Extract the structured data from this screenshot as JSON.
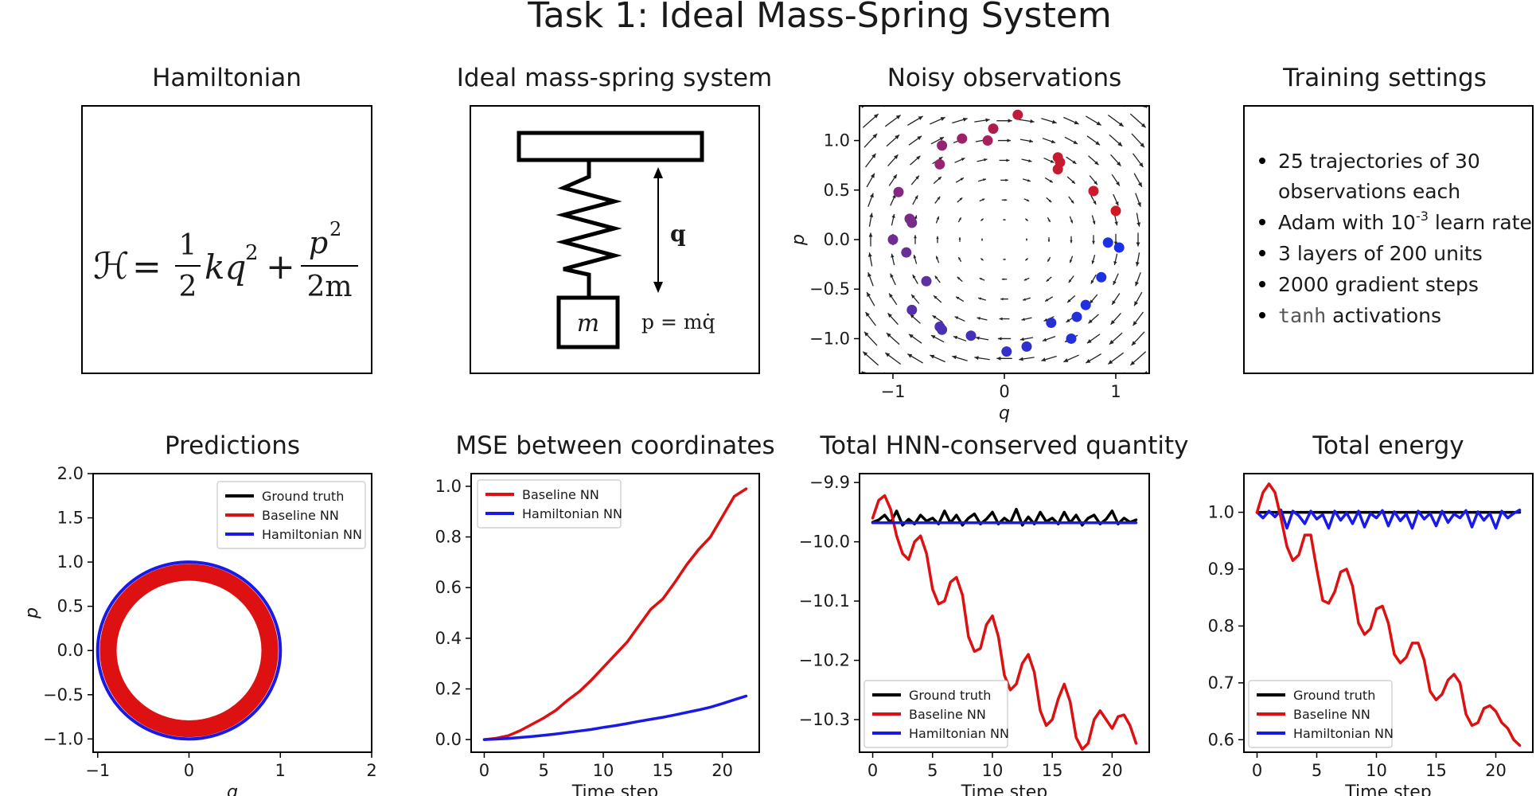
{
  "figure_title": "Task 1: Ideal Mass-Spring System",
  "panels": {
    "hamiltonian": {
      "title": "Hamiltonian",
      "equation": {
        "lhs": "ℋ",
        "eq": "=",
        "n1": "1",
        "d1": "2",
        "term1": "kq",
        "sup1": "2",
        "plus": "+",
        "n2": "p",
        "sup2": "2",
        "d2": "2m"
      }
    },
    "system": {
      "title": "Ideal mass-spring system",
      "mass": "m",
      "q": "q",
      "p_eq": "p = mq̇"
    },
    "training": {
      "title": "Training settings",
      "bullets": [
        {
          "text": "25 trajectories of 30"
        },
        {
          "text": "observations each"
        },
        {
          "text": "Adam with 10",
          "sup": "-3",
          "rest": " learn rate"
        },
        {
          "text": "3 layers of 200 units"
        },
        {
          "text": "2000 gradient steps"
        },
        {
          "mono": "tanh",
          "rest": " activations"
        }
      ]
    }
  },
  "colors": {
    "ground_truth": "#000000",
    "baseline": "#dd1111",
    "hnn": "#1a1ae6"
  },
  "chart_data": [
    {
      "id": "noisy",
      "type": "scatter",
      "title": "Noisy observations",
      "xlabel": "q",
      "ylabel": "p",
      "xlim": [
        -1.3,
        1.3
      ],
      "ylim": [
        -1.35,
        1.35
      ],
      "xticks": [
        -1,
        0,
        1
      ],
      "xtick_labels": [
        "−1",
        "0",
        "1"
      ],
      "yticks": [
        -1.0,
        -0.5,
        0.0,
        0.5,
        1.0
      ],
      "ytick_labels": [
        "−1.0",
        "−0.5",
        "0.0",
        "0.5",
        "1.0"
      ],
      "points": [
        {
          "x": 0.12,
          "y": 1.26,
          "color": "#c01a3c"
        },
        {
          "x": -0.1,
          "y": 1.12,
          "color": "#b01c4a"
        },
        {
          "x": -0.15,
          "y": 1.0,
          "color": "#a8215a"
        },
        {
          "x": -0.38,
          "y": 1.02,
          "color": "#9b2268"
        },
        {
          "x": -0.56,
          "y": 0.95,
          "color": "#952470"
        },
        {
          "x": -0.58,
          "y": 0.76,
          "color": "#932574"
        },
        {
          "x": -0.95,
          "y": 0.48,
          "color": "#842880"
        },
        {
          "x": -0.85,
          "y": 0.21,
          "color": "#7c2a86"
        },
        {
          "x": -0.83,
          "y": 0.17,
          "color": "#782c8a"
        },
        {
          "x": -1.0,
          "y": 0.0,
          "color": "#6d2d92"
        },
        {
          "x": -0.88,
          "y": -0.13,
          "color": "#682e96"
        },
        {
          "x": -0.7,
          "y": -0.42,
          "color": "#5e30a0"
        },
        {
          "x": -0.83,
          "y": -0.71,
          "color": "#5630a8"
        },
        {
          "x": -0.58,
          "y": -0.88,
          "color": "#4e30b0"
        },
        {
          "x": -0.56,
          "y": -0.91,
          "color": "#4a30b4"
        },
        {
          "x": -0.3,
          "y": -0.97,
          "color": "#4230bc"
        },
        {
          "x": 0.02,
          "y": -1.13,
          "color": "#3430c8"
        },
        {
          "x": 0.2,
          "y": -1.08,
          "color": "#2e30ce"
        },
        {
          "x": 0.42,
          "y": -0.84,
          "color": "#2830d4"
        },
        {
          "x": 0.6,
          "y": -1.0,
          "color": "#2430d8"
        },
        {
          "x": 0.65,
          "y": -0.78,
          "color": "#2230dc"
        },
        {
          "x": 0.73,
          "y": -0.66,
          "color": "#2030de"
        },
        {
          "x": 0.87,
          "y": -0.38,
          "color": "#1e30e0"
        },
        {
          "x": 0.93,
          "y": -0.03,
          "color": "#1c30e4"
        },
        {
          "x": 1.03,
          "y": -0.08,
          "color": "#1a30e8"
        },
        {
          "x": 1.0,
          "y": 0.29,
          "color": "#d01a22"
        },
        {
          "x": 0.8,
          "y": 0.49,
          "color": "#cc1a2a"
        },
        {
          "x": 0.48,
          "y": 0.71,
          "color": "#c41a32"
        },
        {
          "x": 0.5,
          "y": 0.78,
          "color": "#c61a30"
        },
        {
          "x": 0.48,
          "y": 0.83,
          "color": "#c81a2e"
        }
      ]
    },
    {
      "id": "pred",
      "type": "line",
      "title": "Predictions",
      "xlabel": "q",
      "ylabel": "p",
      "xlim": [
        -1.05,
        2.0
      ],
      "ylim": [
        -1.15,
        2.0
      ],
      "xticks": [
        -1,
        0,
        1,
        2
      ],
      "xtick_labels": [
        "−1",
        "0",
        "1",
        "2"
      ],
      "yticks": [
        -1.0,
        -0.5,
        0.0,
        0.5,
        1.0,
        1.5,
        2.0
      ],
      "ytick_labels": [
        "−1.0",
        "−0.5",
        "0.0",
        "0.5",
        "1.0",
        "1.5",
        "2.0"
      ],
      "legend": [
        "Ground truth",
        "Baseline NN",
        "Hamiltonian NN"
      ],
      "legend_loc": "upper right",
      "rings": {
        "ground_truth_radius": 1.0,
        "hnn_radius": 0.995,
        "baseline_outer_radius": 0.98,
        "baseline_inner_radius": 0.79
      }
    },
    {
      "id": "mse",
      "type": "line",
      "title": "MSE between coordinates",
      "xlabel": "Time step",
      "ylabel": "",
      "xlim": [
        -1.1,
        23.1
      ],
      "ylim": [
        -0.05,
        1.05
      ],
      "xticks": [
        0,
        5,
        10,
        15,
        20
      ],
      "xtick_labels": [
        "0",
        "5",
        "10",
        "15",
        "20"
      ],
      "yticks": [
        0.0,
        0.2,
        0.4,
        0.6,
        0.8,
        1.0
      ],
      "ytick_labels": [
        "0.0",
        "0.2",
        "0.4",
        "0.6",
        "0.8",
        "1.0"
      ],
      "legend": [
        "Baseline NN",
        "Hamiltonian NN"
      ],
      "legend_loc": "upper left",
      "series": [
        {
          "name": "Baseline NN",
          "color": "#dd1111",
          "x": [
            0,
            1,
            2,
            3,
            4,
            5,
            6,
            7,
            8,
            9,
            10,
            11,
            12,
            13,
            14,
            15,
            16,
            17,
            18,
            19,
            20,
            21,
            22
          ],
          "y": [
            0.0,
            0.005,
            0.015,
            0.035,
            0.06,
            0.085,
            0.115,
            0.155,
            0.19,
            0.235,
            0.285,
            0.335,
            0.385,
            0.45,
            0.515,
            0.555,
            0.62,
            0.69,
            0.75,
            0.8,
            0.88,
            0.96,
            0.99
          ]
        },
        {
          "name": "Hamiltonian NN",
          "color": "#1a1ae6",
          "x": [
            0,
            1,
            2,
            3,
            4,
            5,
            6,
            7,
            8,
            9,
            10,
            11,
            12,
            13,
            14,
            15,
            16,
            17,
            18,
            19,
            20,
            21,
            22
          ],
          "y": [
            0.0,
            0.002,
            0.004,
            0.008,
            0.012,
            0.017,
            0.022,
            0.028,
            0.034,
            0.04,
            0.048,
            0.055,
            0.063,
            0.072,
            0.08,
            0.088,
            0.097,
            0.107,
            0.117,
            0.128,
            0.142,
            0.157,
            0.172
          ]
        }
      ]
    },
    {
      "id": "hnn_q",
      "type": "line",
      "title": "Total HNN-conserved quantity",
      "xlabel": "Time step",
      "ylabel": "",
      "xlim": [
        -1.1,
        23.1
      ],
      "ylim": [
        -10.355,
        -9.885
      ],
      "xticks": [
        0,
        5,
        10,
        15,
        20
      ],
      "xtick_labels": [
        "0",
        "5",
        "10",
        "15",
        "20"
      ],
      "yticks": [
        -10.3,
        -10.2,
        -10.1,
        -10.0,
        -9.9
      ],
      "ytick_labels": [
        "−10.3",
        "−10.2",
        "−10.1",
        "−10.0",
        "−9.9"
      ],
      "legend": [
        "Ground truth",
        "Baseline NN",
        "Hamiltonian NN"
      ],
      "legend_loc": "lower left",
      "series": [
        {
          "name": "Ground truth",
          "color": "#000000",
          "x": [
            0,
            0.5,
            1,
            1.5,
            2,
            2.5,
            3,
            3.5,
            4,
            4.5,
            5,
            5.5,
            6,
            6.5,
            7,
            7.5,
            8,
            8.5,
            9,
            9.5,
            10,
            10.5,
            11,
            11.5,
            12,
            12.5,
            13,
            13.5,
            14,
            14.5,
            15,
            15.5,
            16,
            16.5,
            17,
            17.5,
            18,
            18.5,
            19,
            19.5,
            20,
            20.5,
            21,
            21.5,
            22
          ],
          "y": [
            -9.967,
            -9.963,
            -9.955,
            -9.968,
            -9.948,
            -9.972,
            -9.962,
            -9.97,
            -9.955,
            -9.965,
            -9.96,
            -9.97,
            -9.948,
            -9.968,
            -9.955,
            -9.972,
            -9.96,
            -9.953,
            -9.97,
            -9.962,
            -9.95,
            -9.97,
            -9.96,
            -9.968,
            -9.945,
            -9.972,
            -9.958,
            -9.97,
            -9.95,
            -9.966,
            -9.96,
            -9.97,
            -9.95,
            -9.968,
            -9.955,
            -9.972,
            -9.96,
            -9.955,
            -9.97,
            -9.962,
            -9.948,
            -9.97,
            -9.96,
            -9.967,
            -9.963
          ]
        },
        {
          "name": "Baseline NN",
          "color": "#dd1111",
          "x": [
            0,
            0.5,
            1,
            1.5,
            2,
            2.5,
            3,
            3.5,
            4,
            4.5,
            5,
            5.5,
            6,
            6.5,
            7,
            7.5,
            8,
            8.5,
            9,
            9.5,
            10,
            10.5,
            11,
            11.5,
            12,
            12.5,
            13,
            13.5,
            14,
            14.5,
            15,
            15.5,
            16,
            16.5,
            17,
            17.5,
            18,
            18.5,
            19,
            19.5,
            20,
            20.5,
            21,
            21.5,
            22
          ],
          "y": [
            -9.96,
            -9.93,
            -9.922,
            -9.945,
            -9.99,
            -10.02,
            -10.03,
            -10.0,
            -9.99,
            -10.02,
            -10.08,
            -10.105,
            -10.1,
            -10.068,
            -10.06,
            -10.09,
            -10.16,
            -10.185,
            -10.18,
            -10.14,
            -10.125,
            -10.16,
            -10.225,
            -10.25,
            -10.24,
            -10.205,
            -10.19,
            -10.22,
            -10.285,
            -10.31,
            -10.3,
            -10.265,
            -10.24,
            -10.27,
            -10.33,
            -10.35,
            -10.34,
            -10.3,
            -10.285,
            -10.3,
            -10.315,
            -10.295,
            -10.292,
            -10.31,
            -10.34
          ]
        },
        {
          "name": "Hamiltonian NN",
          "color": "#1a1ae6",
          "x": [
            0,
            22
          ],
          "y": [
            -9.968,
            -9.968
          ]
        }
      ]
    },
    {
      "id": "energy",
      "type": "line",
      "title": "Total energy",
      "xlabel": "Time step",
      "ylabel": "",
      "xlim": [
        -1.1,
        23.1
      ],
      "ylim": [
        0.578,
        1.068
      ],
      "xticks": [
        0,
        5,
        10,
        15,
        20
      ],
      "xtick_labels": [
        "0",
        "5",
        "10",
        "15",
        "20"
      ],
      "yticks": [
        0.6,
        0.7,
        0.8,
        0.9,
        1.0
      ],
      "ytick_labels": [
        "0.6",
        "0.7",
        "0.8",
        "0.9",
        "1.0"
      ],
      "legend": [
        "Ground truth",
        "Baseline NN",
        "Hamiltonian NN"
      ],
      "legend_loc": "lower left",
      "series": [
        {
          "name": "Ground truth",
          "color": "#000000",
          "x": [
            0,
            22
          ],
          "y": [
            1.0,
            1.0
          ]
        },
        {
          "name": "Hamiltonian NN",
          "color": "#1a1ae6",
          "x": [
            0,
            0.5,
            1,
            1.5,
            2,
            2.5,
            3,
            3.5,
            4,
            4.5,
            5,
            5.5,
            6,
            6.5,
            7,
            7.5,
            8,
            8.5,
            9,
            9.5,
            10,
            10.5,
            11,
            11.5,
            12,
            12.5,
            13,
            13.5,
            14,
            14.5,
            15,
            15.5,
            16,
            16.5,
            17,
            17.5,
            18,
            18.5,
            19,
            19.5,
            20,
            20.5,
            21,
            21.5,
            22
          ],
          "y": [
            1.0,
            0.99,
            1.002,
            0.992,
            1.004,
            0.972,
            1.002,
            0.994,
            0.98,
            1.002,
            0.988,
            0.996,
            0.972,
            1.002,
            0.986,
            0.999,
            0.98,
            1.002,
            0.974,
            0.998,
            0.99,
            1.003,
            0.976,
            1.001,
            0.985,
            0.997,
            0.972,
            1.002,
            0.988,
            0.998,
            0.976,
            1.002,
            0.982,
            0.997,
            0.99,
            1.003,
            0.974,
            1.001,
            0.986,
            0.998,
            0.972,
            1.002,
            0.99,
            0.998,
            1.004
          ]
        },
        {
          "name": "Baseline NN",
          "color": "#dd1111",
          "x": [
            0,
            0.5,
            1,
            1.5,
            2,
            2.5,
            3,
            3.5,
            4,
            4.5,
            5,
            5.5,
            6,
            6.5,
            7,
            7.5,
            8,
            8.5,
            9,
            9.5,
            10,
            10.5,
            11,
            11.5,
            12,
            12.5,
            13,
            13.5,
            14,
            14.5,
            15,
            15.5,
            16,
            16.5,
            17,
            17.5,
            18,
            18.5,
            19,
            19.5,
            20,
            20.5,
            21,
            21.5,
            22
          ],
          "y": [
            1.0,
            1.035,
            1.05,
            1.035,
            0.99,
            0.94,
            0.915,
            0.925,
            0.96,
            0.96,
            0.9,
            0.845,
            0.84,
            0.86,
            0.895,
            0.9,
            0.87,
            0.805,
            0.785,
            0.795,
            0.83,
            0.835,
            0.805,
            0.75,
            0.735,
            0.745,
            0.77,
            0.77,
            0.74,
            0.685,
            0.67,
            0.68,
            0.705,
            0.715,
            0.7,
            0.645,
            0.625,
            0.63,
            0.655,
            0.66,
            0.65,
            0.63,
            0.62,
            0.6,
            0.59
          ]
        }
      ]
    }
  ]
}
